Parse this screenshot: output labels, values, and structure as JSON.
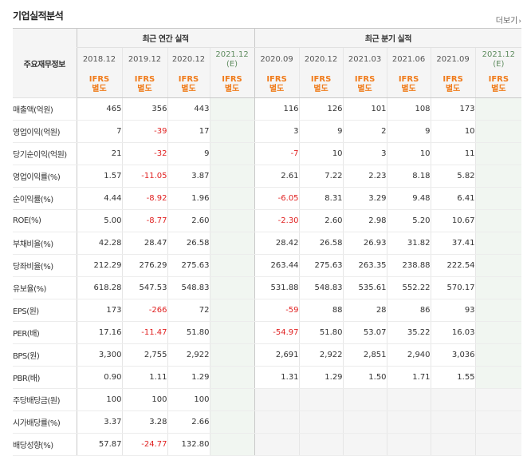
{
  "title": "기업실적분석",
  "more_label": "더보기",
  "header": {
    "label": "주요재무정보",
    "annual_group": "최근 연간 실적",
    "quarter_group": "최근 분기 실적",
    "annual_periods": [
      "2018.12",
      "2019.12",
      "2020.12"
    ],
    "annual_estimate": {
      "period": "2021.12",
      "mark": "(E)"
    },
    "quarter_periods": [
      "2020.09",
      "2020.12",
      "2021.03",
      "2021.06",
      "2021.09"
    ],
    "quarter_estimate": {
      "period": "2021.12",
      "mark": "(E)"
    },
    "ifrs_line1": "IFRS",
    "ifrs_line2": "별도"
  },
  "rows": [
    {
      "label": "매출액(억원)",
      "annual": [
        "465",
        "356",
        "443"
      ],
      "annual_est": "",
      "quarter": [
        "116",
        "126",
        "101",
        "108",
        "173"
      ],
      "quarter_est": ""
    },
    {
      "label": "영업이익(억원)",
      "annual": [
        "7",
        "-39",
        "17"
      ],
      "annual_est": "",
      "quarter": [
        "3",
        "9",
        "2",
        "9",
        "10"
      ],
      "quarter_est": ""
    },
    {
      "label": "당기순이익(억원)",
      "annual": [
        "21",
        "-32",
        "9"
      ],
      "annual_est": "",
      "quarter": [
        "-7",
        "10",
        "3",
        "10",
        "11"
      ],
      "quarter_est": ""
    },
    {
      "label": "영업이익률(%)",
      "annual": [
        "1.57",
        "-11.05",
        "3.87"
      ],
      "annual_est": "",
      "quarter": [
        "2.61",
        "7.22",
        "2.23",
        "8.18",
        "5.82"
      ],
      "quarter_est": ""
    },
    {
      "label": "순이익률(%)",
      "annual": [
        "4.44",
        "-8.92",
        "1.96"
      ],
      "annual_est": "",
      "quarter": [
        "-6.05",
        "8.31",
        "3.29",
        "9.48",
        "6.41"
      ],
      "quarter_est": ""
    },
    {
      "label": "ROE(%)",
      "annual": [
        "5.00",
        "-8.77",
        "2.60"
      ],
      "annual_est": "",
      "quarter": [
        "-2.30",
        "2.60",
        "2.98",
        "5.20",
        "10.67"
      ],
      "quarter_est": ""
    },
    {
      "label": "부채비율(%)",
      "annual": [
        "42.28",
        "28.47",
        "26.58"
      ],
      "annual_est": "",
      "quarter": [
        "28.42",
        "26.58",
        "26.93",
        "31.82",
        "37.41"
      ],
      "quarter_est": ""
    },
    {
      "label": "당좌비율(%)",
      "annual": [
        "212.29",
        "276.29",
        "275.63"
      ],
      "annual_est": "",
      "quarter": [
        "263.44",
        "275.63",
        "263.35",
        "238.88",
        "222.54"
      ],
      "quarter_est": ""
    },
    {
      "label": "유보율(%)",
      "annual": [
        "618.28",
        "547.53",
        "548.83"
      ],
      "annual_est": "",
      "quarter": [
        "531.88",
        "548.83",
        "535.61",
        "552.22",
        "570.17"
      ],
      "quarter_est": ""
    },
    {
      "label": "EPS(원)",
      "annual": [
        "173",
        "-266",
        "72"
      ],
      "annual_est": "",
      "quarter": [
        "-59",
        "88",
        "28",
        "86",
        "93"
      ],
      "quarter_est": ""
    },
    {
      "label": "PER(배)",
      "annual": [
        "17.16",
        "-11.47",
        "51.80"
      ],
      "annual_est": "",
      "quarter": [
        "-54.97",
        "51.80",
        "53.07",
        "35.22",
        "16.03"
      ],
      "quarter_est": ""
    },
    {
      "label": "BPS(원)",
      "annual": [
        "3,300",
        "2,755",
        "2,922"
      ],
      "annual_est": "",
      "quarter": [
        "2,691",
        "2,922",
        "2,851",
        "2,940",
        "3,036"
      ],
      "quarter_est": ""
    },
    {
      "label": "PBR(배)",
      "annual": [
        "0.90",
        "1.11",
        "1.29"
      ],
      "annual_est": "",
      "quarter": [
        "1.31",
        "1.29",
        "1.50",
        "1.71",
        "1.55"
      ],
      "quarter_est": ""
    },
    {
      "label": "주당배당금(원)",
      "annual": [
        "100",
        "100",
        "100"
      ],
      "annual_est": "",
      "quarter": [
        "",
        "",
        "",
        "",
        ""
      ],
      "quarter_est": ""
    },
    {
      "label": "시가배당률(%)",
      "annual": [
        "3.37",
        "3.28",
        "2.66"
      ],
      "annual_est": "",
      "quarter": [
        "",
        "",
        "",
        "",
        ""
      ],
      "quarter_est": ""
    },
    {
      "label": "배당성향(%)",
      "annual": [
        "57.87",
        "-24.77",
        "132.80"
      ],
      "annual_est": "",
      "quarter": [
        "",
        "",
        "",
        "",
        ""
      ],
      "quarter_est": ""
    }
  ]
}
